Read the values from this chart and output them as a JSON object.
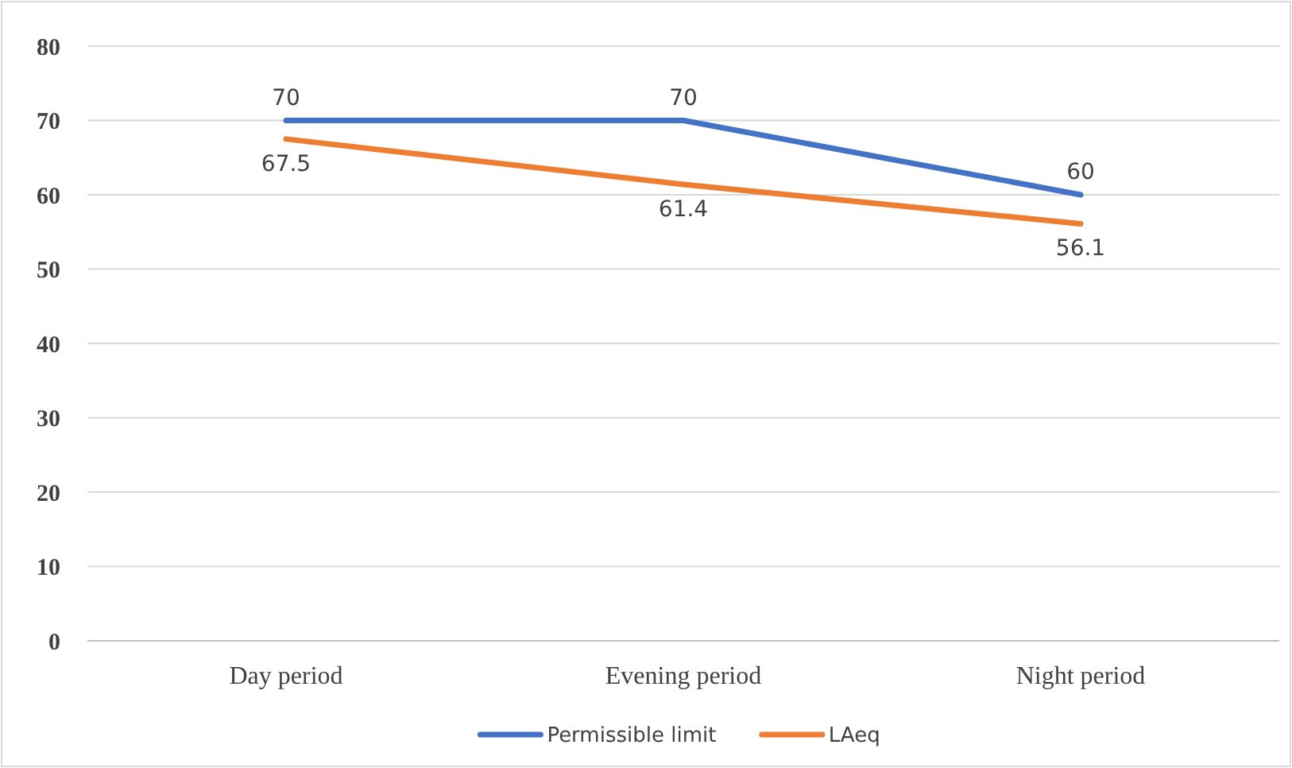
{
  "chart_data": {
    "type": "line",
    "categories": [
      "Day period",
      "Evening period",
      "Night period"
    ],
    "series": [
      {
        "name": "Permissible limit",
        "color": "#4472c4",
        "values": [
          70,
          70,
          60
        ]
      },
      {
        "name": "LAeq",
        "color": "#ed7d31",
        "values": [
          67.5,
          61.4,
          56.1
        ]
      }
    ],
    "ylim": [
      0,
      80
    ],
    "yticks": [
      0,
      10,
      20,
      30,
      40,
      50,
      60,
      70,
      80
    ],
    "grid": "y",
    "legend": "bottom",
    "data_labels": true,
    "marker": "none",
    "line_style": "solid"
  }
}
